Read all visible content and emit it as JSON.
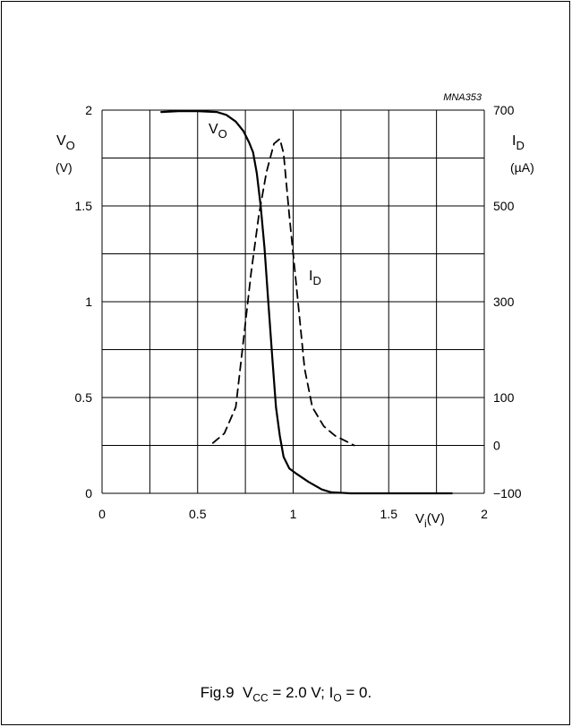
{
  "figure_code": "MNA353",
  "caption": {
    "fig": "Fig.9",
    "part1_base": "V",
    "part1_sub": "CC",
    "part1_rest": " = 2.0 V; ",
    "part2_base": "I",
    "part2_sub": "O",
    "part2_rest": " = 0."
  },
  "chart_data": {
    "type": "line",
    "x_axis": {
      "label_base": "V",
      "label_sub": "i",
      "label_unit": "(V)",
      "min": 0,
      "max": 2,
      "ticks": [
        "0",
        "0.5",
        "1",
        "1.5",
        "2"
      ],
      "tick_values": [
        0,
        0.5,
        1,
        1.5,
        2
      ]
    },
    "y_left": {
      "label_base": "V",
      "label_sub": "O",
      "label_unit": "(V)",
      "min": 0,
      "max": 2,
      "ticks": [
        "0",
        "0.5",
        "1",
        "1.5",
        "2"
      ],
      "tick_values": [
        0,
        0.5,
        1,
        1.5,
        2
      ]
    },
    "y_right": {
      "label_base": "I",
      "label_sub": "D",
      "label_unit": "(µA)",
      "min": -100,
      "max": 700,
      "ticks": [
        "−100",
        "0",
        "100",
        "300",
        "500",
        "700"
      ],
      "tick_values": [
        -100,
        0,
        100,
        300,
        500,
        700
      ]
    },
    "grid": true,
    "series": [
      {
        "name_base": "V",
        "name_sub": "O",
        "axis": "left",
        "style": "solid",
        "points": [
          [
            0.31,
            1.99
          ],
          [
            0.4,
            1.995
          ],
          [
            0.5,
            1.995
          ],
          [
            0.6,
            1.99
          ],
          [
            0.65,
            1.975
          ],
          [
            0.7,
            1.94
          ],
          [
            0.74,
            1.89
          ],
          [
            0.77,
            1.83
          ],
          [
            0.79,
            1.78
          ],
          [
            0.81,
            1.67
          ],
          [
            0.83,
            1.5
          ],
          [
            0.85,
            1.28
          ],
          [
            0.87,
            1.0
          ],
          [
            0.89,
            0.72
          ],
          [
            0.91,
            0.45
          ],
          [
            0.93,
            0.3
          ],
          [
            0.95,
            0.19
          ],
          [
            0.98,
            0.13
          ],
          [
            1.02,
            0.1
          ],
          [
            1.08,
            0.06
          ],
          [
            1.15,
            0.02
          ],
          [
            1.2,
            0.005
          ],
          [
            1.3,
            0.0
          ],
          [
            1.6,
            0.0
          ],
          [
            1.83,
            0.0
          ]
        ]
      },
      {
        "name_base": "I",
        "name_sub": "D",
        "axis": "right",
        "style": "dashed",
        "points": [
          [
            0.58,
            5
          ],
          [
            0.64,
            25
          ],
          [
            0.7,
            80
          ],
          [
            0.74,
            220
          ],
          [
            0.78,
            360
          ],
          [
            0.82,
            480
          ],
          [
            0.86,
            570
          ],
          [
            0.9,
            630
          ],
          [
            0.93,
            640
          ],
          [
            0.95,
            610
          ],
          [
            0.98,
            480
          ],
          [
            1.02,
            320
          ],
          [
            1.06,
            160
          ],
          [
            1.1,
            80
          ],
          [
            1.16,
            40
          ],
          [
            1.22,
            20
          ],
          [
            1.27,
            10
          ],
          [
            1.32,
            0
          ]
        ]
      }
    ]
  }
}
